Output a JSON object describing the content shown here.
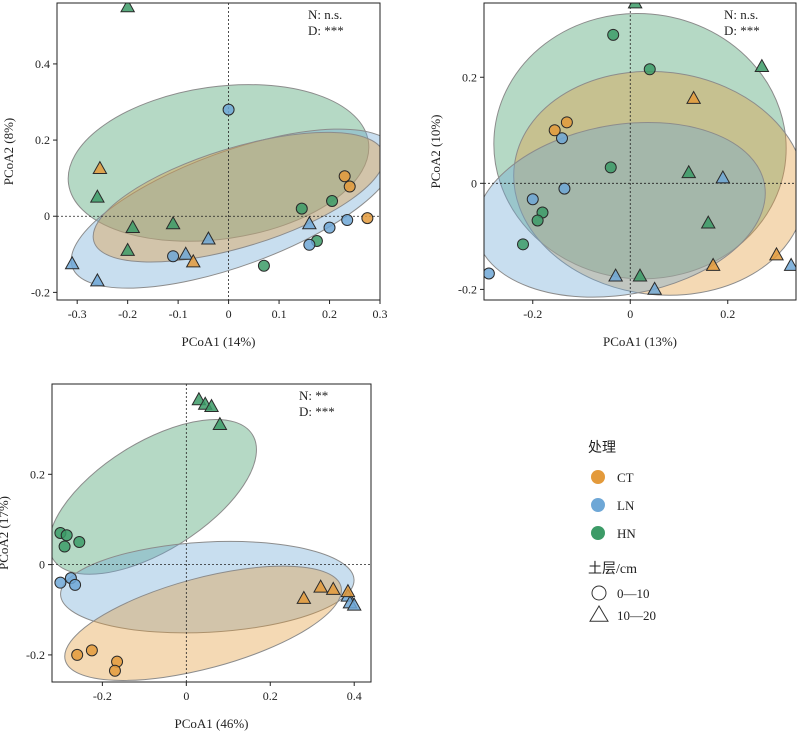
{
  "colors": {
    "CT": "#e39a3b",
    "LN": "#6ea7d6",
    "HN": "#3c9b67"
  },
  "legend": {
    "treatment_title": "处理",
    "treatments": [
      "CT",
      "LN",
      "HN"
    ],
    "depth_title": "土层/cm",
    "depths": [
      {
        "label": "0—10",
        "shape": "circle"
      },
      {
        "label": "10—20",
        "shape": "triangle"
      }
    ]
  },
  "chart_data": [
    {
      "type": "scatter",
      "xlabel": "PCoA1 (14%)",
      "ylabel": "PCoA2 (8%)",
      "xlim": [
        -0.34,
        0.3
      ],
      "ylim": [
        -0.22,
        0.56
      ],
      "xticks": [
        "-0.3",
        "-0.2",
        "-0.1",
        "0",
        "0.1",
        "0.2",
        "0.3"
      ],
      "yticks": [
        "-0.2",
        "0",
        "0.2",
        "0.4"
      ],
      "annotations": [
        "N: n.s.",
        "D: ***"
      ],
      "ellipses": [
        {
          "group": "HN",
          "cx": -0.02,
          "cy": 0.14,
          "rx": 0.3,
          "ry": 0.2,
          "angle": 8
        },
        {
          "group": "LN",
          "cx": 0.01,
          "cy": 0.02,
          "rx": 0.34,
          "ry": 0.15,
          "angle": 20
        },
        {
          "group": "CT",
          "cx": 0.02,
          "cy": 0.05,
          "rx": 0.3,
          "ry": 0.13,
          "angle": 17
        }
      ],
      "series": [
        {
          "group": "HN",
          "shape": "circle",
          "points": [
            [
              0.145,
              0.02
            ],
            [
              0.205,
              0.04
            ],
            [
              0.175,
              -0.065
            ],
            [
              0.07,
              -0.13
            ]
          ]
        },
        {
          "group": "HN",
          "shape": "triangle",
          "points": [
            [
              -0.2,
              0.55
            ],
            [
              -0.26,
              0.05
            ],
            [
              -0.2,
              -0.09
            ],
            [
              -0.19,
              -0.03
            ],
            [
              -0.11,
              -0.02
            ]
          ]
        },
        {
          "group": "LN",
          "shape": "circle",
          "points": [
            [
              0.0,
              0.28
            ],
            [
              0.2,
              -0.03
            ],
            [
              0.235,
              -0.01
            ],
            [
              -0.11,
              -0.105
            ],
            [
              0.16,
              -0.075
            ]
          ]
        },
        {
          "group": "LN",
          "shape": "triangle",
          "points": [
            [
              -0.31,
              -0.125
            ],
            [
              -0.26,
              -0.17
            ],
            [
              0.16,
              -0.02
            ],
            [
              -0.04,
              -0.06
            ],
            [
              -0.085,
              -0.1
            ]
          ]
        },
        {
          "group": "CT",
          "shape": "circle",
          "points": [
            [
              0.275,
              -0.005
            ],
            [
              0.23,
              0.105
            ],
            [
              0.24,
              0.078
            ]
          ]
        },
        {
          "group": "CT",
          "shape": "triangle",
          "points": [
            [
              -0.255,
              0.125
            ],
            [
              -0.07,
              -0.12
            ]
          ]
        }
      ]
    },
    {
      "type": "scatter",
      "xlabel": "PCoA1 (13%)",
      "ylabel": "PCoA2 (10%)",
      "xlim": [
        -0.3,
        0.34
      ],
      "ylim": [
        -0.22,
        0.34
      ],
      "xticks": [
        "-0.2",
        "0",
        "0.2"
      ],
      "yticks": [
        "-0.2",
        "0",
        "0.2"
      ],
      "annotations": [
        "N: n.s.",
        "D: ***"
      ],
      "ellipses": [
        {
          "group": "HN",
          "cx": 0.02,
          "cy": 0.07,
          "rx": 0.3,
          "ry": 0.25,
          "angle": -5
        },
        {
          "group": "CT",
          "cx": 0.06,
          "cy": 0.0,
          "rx": 0.3,
          "ry": 0.21,
          "angle": -7
        },
        {
          "group": "LN",
          "cx": -0.02,
          "cy": -0.05,
          "rx": 0.3,
          "ry": 0.16,
          "angle": 10
        }
      ],
      "series": [
        {
          "group": "HN",
          "shape": "circle",
          "points": [
            [
              -0.035,
              0.28
            ],
            [
              0.04,
              0.215
            ],
            [
              -0.04,
              0.03
            ],
            [
              -0.18,
              -0.055
            ],
            [
              -0.19,
              -0.07
            ],
            [
              -0.22,
              -0.115
            ]
          ]
        },
        {
          "group": "HN",
          "shape": "triangle",
          "points": [
            [
              0.01,
              0.34
            ],
            [
              0.27,
              0.22
            ],
            [
              0.12,
              0.02
            ],
            [
              0.16,
              -0.075
            ],
            [
              0.02,
              -0.175
            ]
          ]
        },
        {
          "group": "LN",
          "shape": "circle",
          "points": [
            [
              -0.29,
              -0.17
            ],
            [
              -0.2,
              -0.03
            ],
            [
              -0.135,
              -0.01
            ],
            [
              -0.14,
              0.085
            ]
          ]
        },
        {
          "group": "LN",
          "shape": "triangle",
          "points": [
            [
              0.19,
              0.01
            ],
            [
              -0.03,
              -0.175
            ],
            [
              0.05,
              -0.2
            ],
            [
              0.33,
              -0.155
            ]
          ]
        },
        {
          "group": "CT",
          "shape": "circle",
          "points": [
            [
              -0.155,
              0.1
            ],
            [
              -0.13,
              0.115
            ]
          ]
        },
        {
          "group": "CT",
          "shape": "triangle",
          "points": [
            [
              0.13,
              0.16
            ],
            [
              0.3,
              -0.135
            ],
            [
              0.17,
              -0.155
            ]
          ]
        }
      ]
    },
    {
      "type": "scatter",
      "xlabel": "PCoA1 (46%)",
      "ylabel": "PCoA2 (17%)",
      "xlim": [
        -0.32,
        0.44
      ],
      "ylim": [
        -0.26,
        0.4
      ],
      "xticks": [
        "-0.2",
        "0",
        "0.2",
        "0.4"
      ],
      "yticks": [
        "-0.2",
        "0",
        "0.2"
      ],
      "annotations": [
        "N: **",
        "D: ***"
      ],
      "ellipses": [
        {
          "group": "HN",
          "cx": -0.08,
          "cy": 0.15,
          "rx": 0.28,
          "ry": 0.12,
          "angle": 32
        },
        {
          "group": "LN",
          "cx": 0.05,
          "cy": -0.05,
          "rx": 0.35,
          "ry": 0.1,
          "angle": 3
        },
        {
          "group": "CT",
          "cx": 0.04,
          "cy": -0.13,
          "rx": 0.34,
          "ry": 0.1,
          "angle": 15
        }
      ],
      "series": [
        {
          "group": "HN",
          "shape": "circle",
          "points": [
            [
              -0.3,
              0.07
            ],
            [
              -0.285,
              0.065
            ],
            [
              -0.255,
              0.05
            ],
            [
              -0.29,
              0.04
            ]
          ]
        },
        {
          "group": "HN",
          "shape": "triangle",
          "points": [
            [
              0.03,
              0.365
            ],
            [
              0.045,
              0.355
            ],
            [
              0.06,
              0.35
            ],
            [
              0.08,
              0.31
            ]
          ]
        },
        {
          "group": "LN",
          "shape": "circle",
          "points": [
            [
              -0.3,
              -0.04
            ],
            [
              -0.275,
              -0.03
            ],
            [
              -0.265,
              -0.045
            ]
          ]
        },
        {
          "group": "LN",
          "shape": "triangle",
          "points": [
            [
              0.385,
              -0.07
            ],
            [
              0.39,
              -0.085
            ],
            [
              0.4,
              -0.09
            ]
          ]
        },
        {
          "group": "CT",
          "shape": "circle",
          "points": [
            [
              -0.225,
              -0.19
            ],
            [
              -0.26,
              -0.2
            ],
            [
              -0.165,
              -0.215
            ],
            [
              -0.17,
              -0.235
            ]
          ]
        },
        {
          "group": "CT",
          "shape": "triangle",
          "points": [
            [
              0.32,
              -0.05
            ],
            [
              0.35,
              -0.055
            ],
            [
              0.28,
              -0.075
            ],
            [
              0.385,
              -0.06
            ]
          ]
        }
      ]
    }
  ]
}
